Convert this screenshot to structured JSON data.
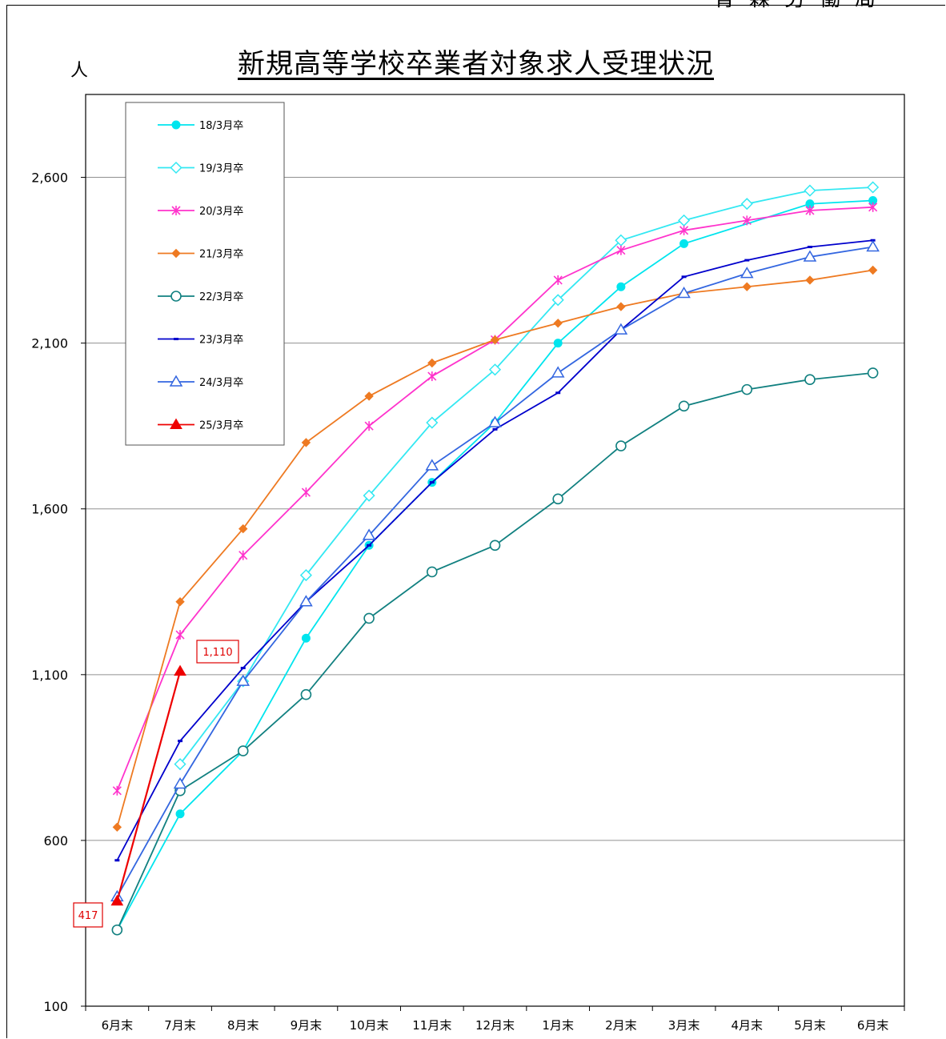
{
  "header": {
    "organization": "青森労働局",
    "title": "新規高等学校卒業者対象求人受理状況",
    "unit": "人"
  },
  "chart_data": {
    "type": "line",
    "title": "新規高等学校卒業者対象求人受理状況",
    "ylabel": "人",
    "xlabel": "",
    "categories": [
      "6月末",
      "7月末",
      "8月末",
      "9月末",
      "10月末",
      "11月末",
      "12月末",
      "1月末",
      "2月末",
      "3月末",
      "4月末",
      "5月末",
      "6月末"
    ],
    "ylim": [
      100,
      2850
    ],
    "yticks": [
      100,
      600,
      1100,
      1600,
      2100,
      2600
    ],
    "ytick_labels": [
      "100",
      "600",
      "1,100",
      "1,600",
      "2,100",
      "2,600"
    ],
    "grid": true,
    "legend_position": "top-left",
    "series": [
      {
        "name": "18/3月卒",
        "color": "#00e5ee",
        "marker": "filled-circle",
        "values": [
          330,
          680,
          870,
          1210,
          1490,
          1680,
          1860,
          2100,
          2270,
          2400,
          null,
          2520,
          2530
        ]
      },
      {
        "name": "19/3月卒",
        "color": "#33e8f2",
        "marker": "hollow-diamond",
        "values": [
          null,
          830,
          1080,
          1400,
          1640,
          1860,
          2020,
          2230,
          2410,
          2470,
          2520,
          2560,
          2570
        ]
      },
      {
        "name": "20/3月卒",
        "color": "#ff33cc",
        "marker": "asterisk",
        "values": [
          750,
          1220,
          1460,
          1650,
          1850,
          2000,
          2110,
          2290,
          2380,
          2440,
          2470,
          2500,
          2510
        ]
      },
      {
        "name": "21/3月卒",
        "color": "#ee7a22",
        "marker": "filled-diamond",
        "values": [
          640,
          1320,
          1540,
          1800,
          1940,
          2040,
          2110,
          2160,
          2210,
          2250,
          2270,
          2290,
          2320
        ]
      },
      {
        "name": "22/3月卒",
        "color": "#118080",
        "marker": "hollow-circle",
        "values": [
          330,
          750,
          870,
          1040,
          1270,
          1410,
          1490,
          1630,
          1790,
          1910,
          1960,
          1990,
          2010
        ]
      },
      {
        "name": "23/3月卒",
        "color": "#0000cc",
        "marker": "dash",
        "values": [
          540,
          900,
          1120,
          1320,
          1490,
          1680,
          1840,
          1950,
          2140,
          2300,
          2350,
          2390,
          2410
        ]
      },
      {
        "name": "24/3月卒",
        "color": "#3366e0",
        "marker": "hollow-triangle",
        "values": [
          430,
          770,
          1080,
          1320,
          1520,
          1730,
          1860,
          2010,
          2140,
          2250,
          2310,
          2360,
          2390
        ]
      },
      {
        "name": "25/3月卒",
        "color": "#ee0000",
        "marker": "filled-triangle",
        "values": [
          417,
          1110,
          null,
          null,
          null,
          null,
          null,
          null,
          null,
          null,
          null,
          null,
          null
        ]
      }
    ],
    "annotations": [
      {
        "text": "417",
        "category": "6月末",
        "value": 417
      },
      {
        "text": "1,110",
        "category": "7月末",
        "value": 1110
      }
    ]
  }
}
